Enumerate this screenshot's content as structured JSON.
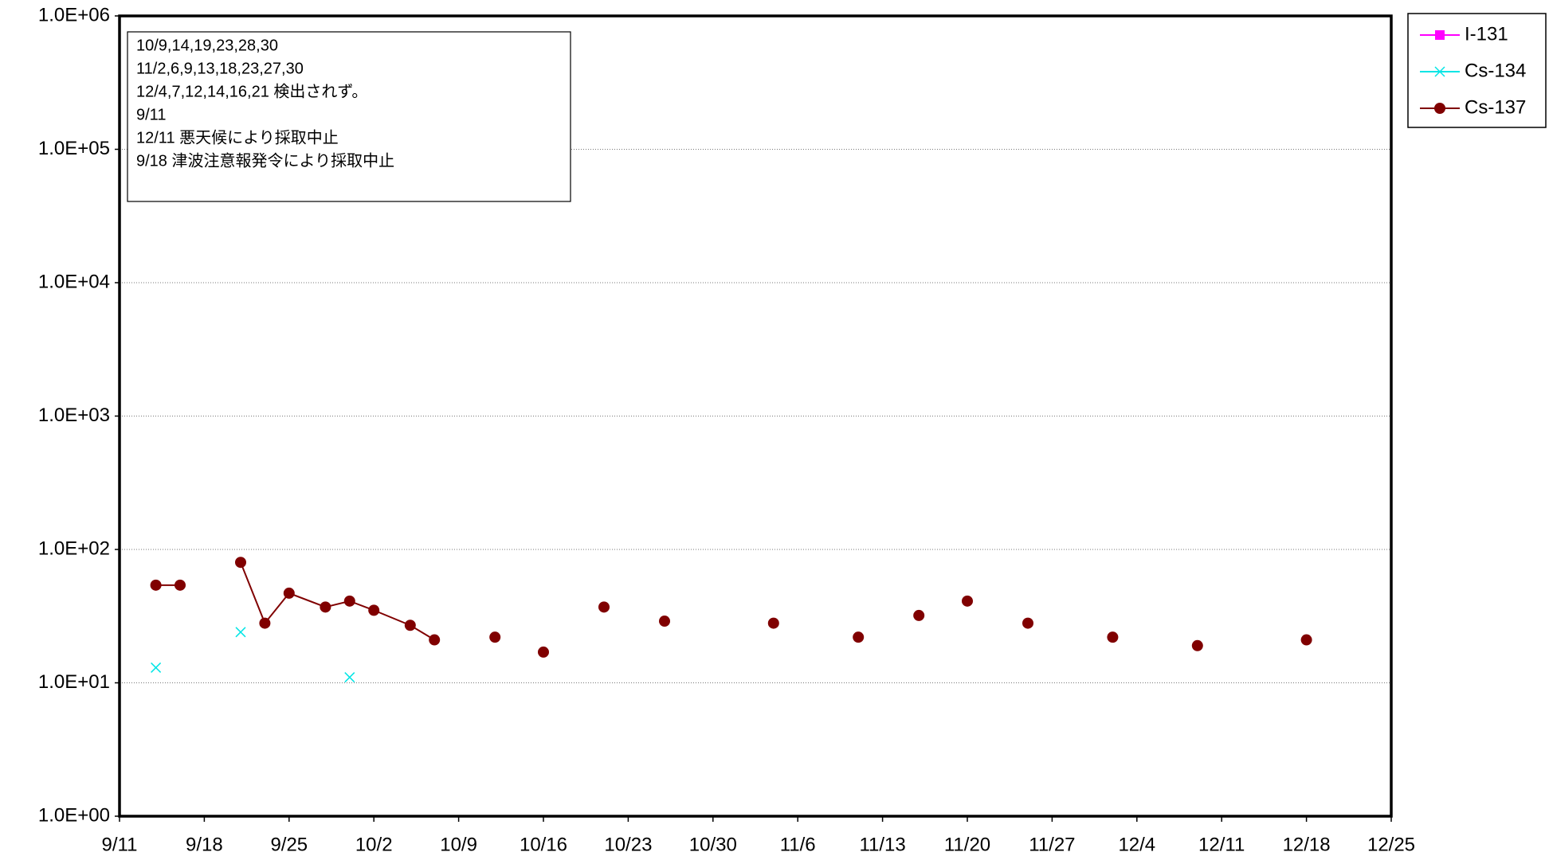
{
  "chart_data": {
    "type": "line",
    "annotation": [
      "10/9,14,19,23,28,30",
      "11/2,6,9,13,18,23,27,30",
      "12/4,7,12,14,16,21 検出されず。",
      "9/11",
      "12/11 悪天候により採取中止",
      "9/18 津波注意報発令により採取中止"
    ],
    "x": [
      "9/14",
      "9/16",
      "9/18",
      "9/21",
      "9/23",
      "9/25",
      "9/28",
      "9/30",
      "10/2",
      "10/5",
      "10/7",
      "10/9",
      "10/12",
      "10/14",
      "10/16",
      "10/19",
      "10/21",
      "10/23",
      "10/26",
      "10/28",
      "10/30",
      "11/2",
      "11/4",
      "11/6",
      "11/9",
      "11/11",
      "11/13",
      "11/16",
      "11/18",
      "11/20",
      "11/23",
      "11/25",
      "11/27",
      "11/30",
      "12/2",
      "12/4",
      "12/7",
      "12/9",
      "12/11",
      "12/12",
      "12/14",
      "12/16",
      "12/18",
      "12/21"
    ],
    "series": [
      {
        "name": "I-131",
        "color": "#ff00ff",
        "marker": "square",
        "values": [
          null,
          null,
          null,
          null,
          null,
          null,
          null,
          null,
          null,
          null,
          null,
          null,
          null,
          null,
          null,
          null,
          null,
          null,
          null,
          null,
          null,
          null,
          null,
          null,
          null,
          null,
          null,
          null,
          null,
          null,
          null,
          null,
          null,
          null,
          null,
          null,
          null,
          null,
          null,
          null,
          null,
          null,
          null,
          null
        ]
      },
      {
        "name": "Cs-134",
        "color": "#00e5e5",
        "marker": "x",
        "values": [
          13,
          null,
          null,
          24,
          null,
          null,
          null,
          11,
          null,
          null,
          null,
          null,
          null,
          null,
          null,
          null,
          null,
          null,
          null,
          null,
          null,
          null,
          null,
          null,
          null,
          null,
          null,
          null,
          null,
          null,
          null,
          null,
          null,
          null,
          null,
          null,
          null,
          null,
          null,
          null,
          null,
          null,
          null,
          null
        ]
      },
      {
        "name": "Cs-137",
        "color": "#800000",
        "marker": "circle",
        "values": [
          54,
          54,
          null,
          80,
          28,
          47,
          37,
          41,
          35,
          27,
          21,
          null,
          22,
          null,
          17,
          null,
          37,
          null,
          29,
          null,
          null,
          null,
          28,
          null,
          null,
          22,
          null,
          32,
          null,
          41,
          null,
          28,
          null,
          null,
          22,
          null,
          null,
          19,
          null,
          null,
          null,
          null,
          21,
          null
        ]
      }
    ],
    "xlim": [
      "9/11",
      "12/25"
    ],
    "xticks": [
      "9/11",
      "9/18",
      "9/25",
      "10/2",
      "10/9",
      "10/16",
      "10/23",
      "10/30",
      "11/6",
      "11/13",
      "11/20",
      "11/27",
      "12/4",
      "12/11",
      "12/18",
      "12/25"
    ],
    "ylim": [
      1,
      1000000
    ],
    "log_y": true,
    "yticks": [
      {
        "value": 1,
        "label": "1.0E+00"
      },
      {
        "value": 10,
        "label": "1.0E+01"
      },
      {
        "value": 100,
        "label": "1.0E+02"
      },
      {
        "value": 1000,
        "label": "1.0E+03"
      },
      {
        "value": 10000,
        "label": "1.0E+04"
      },
      {
        "value": 100000,
        "label": "1.0E+05"
      },
      {
        "value": 1000000,
        "label": "1.0E+06"
      }
    ],
    "grid": true,
    "legend": "right"
  }
}
